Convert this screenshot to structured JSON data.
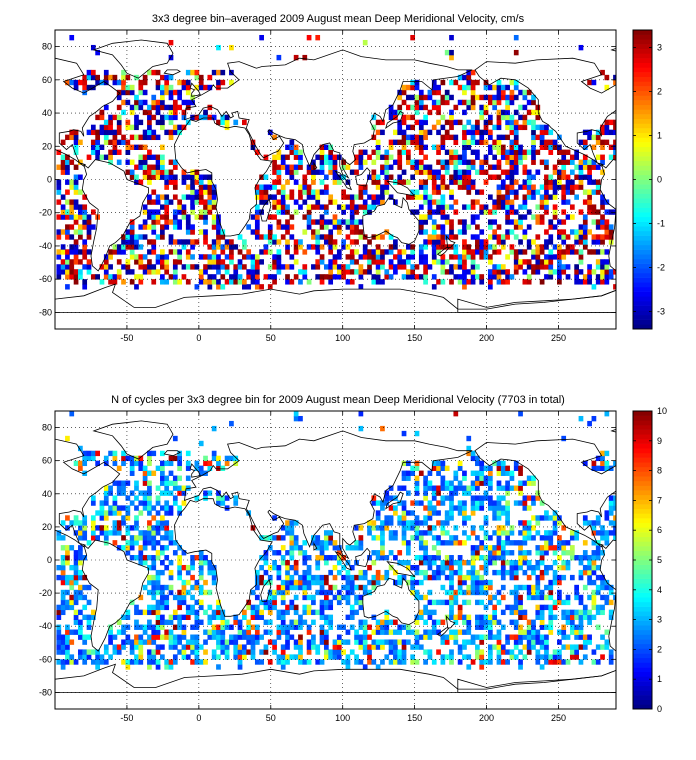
{
  "figure": {
    "panels": [
      {
        "title": "3x3 degree bin–averaged 2009 August mean Deep Meridional Velocity, cm/s"
      },
      {
        "title": "N of cycles per 3x3 degree bin for 2009 August mean Deep Meridional Velocity (7703 in total)"
      }
    ]
  },
  "chart_data": [
    {
      "type": "heatmap",
      "title": "3x3 degree bin–averaged 2009 August mean Deep Meridional Velocity, cm/s",
      "xlabel": "",
      "ylabel": "",
      "xlim": [
        -100,
        290
      ],
      "ylim": [
        -90,
        90
      ],
      "x_ticks": [
        -50,
        0,
        50,
        100,
        150,
        200,
        250
      ],
      "y_ticks": [
        -80,
        -60,
        -40,
        -20,
        0,
        20,
        40,
        60,
        80
      ],
      "bin_size_deg": 3,
      "grid": "dotted",
      "colormap": "jet",
      "colorbar": {
        "clim": [
          -3.4,
          3.4
        ],
        "ticks": [
          -3,
          -2,
          -1,
          0,
          1,
          2,
          3
        ]
      },
      "overlay": "coastlines"
    },
    {
      "type": "heatmap",
      "title": "N of cycles per 3x3 degree bin for 2009 August mean Deep Meridional Velocity (7703 in total)",
      "xlabel": "",
      "ylabel": "",
      "xlim": [
        -100,
        290
      ],
      "ylim": [
        -90,
        90
      ],
      "x_ticks": [
        -50,
        0,
        50,
        100,
        150,
        200,
        250
      ],
      "y_ticks": [
        -80,
        -60,
        -40,
        -20,
        0,
        20,
        40,
        60,
        80
      ],
      "bin_size_deg": 3,
      "grid": "dotted",
      "colormap": "jet",
      "colorbar": {
        "clim": [
          0,
          10
        ],
        "ticks": [
          0,
          1,
          2,
          3,
          4,
          5,
          6,
          7,
          8,
          9,
          10
        ]
      },
      "overlay": "coastlines"
    }
  ]
}
